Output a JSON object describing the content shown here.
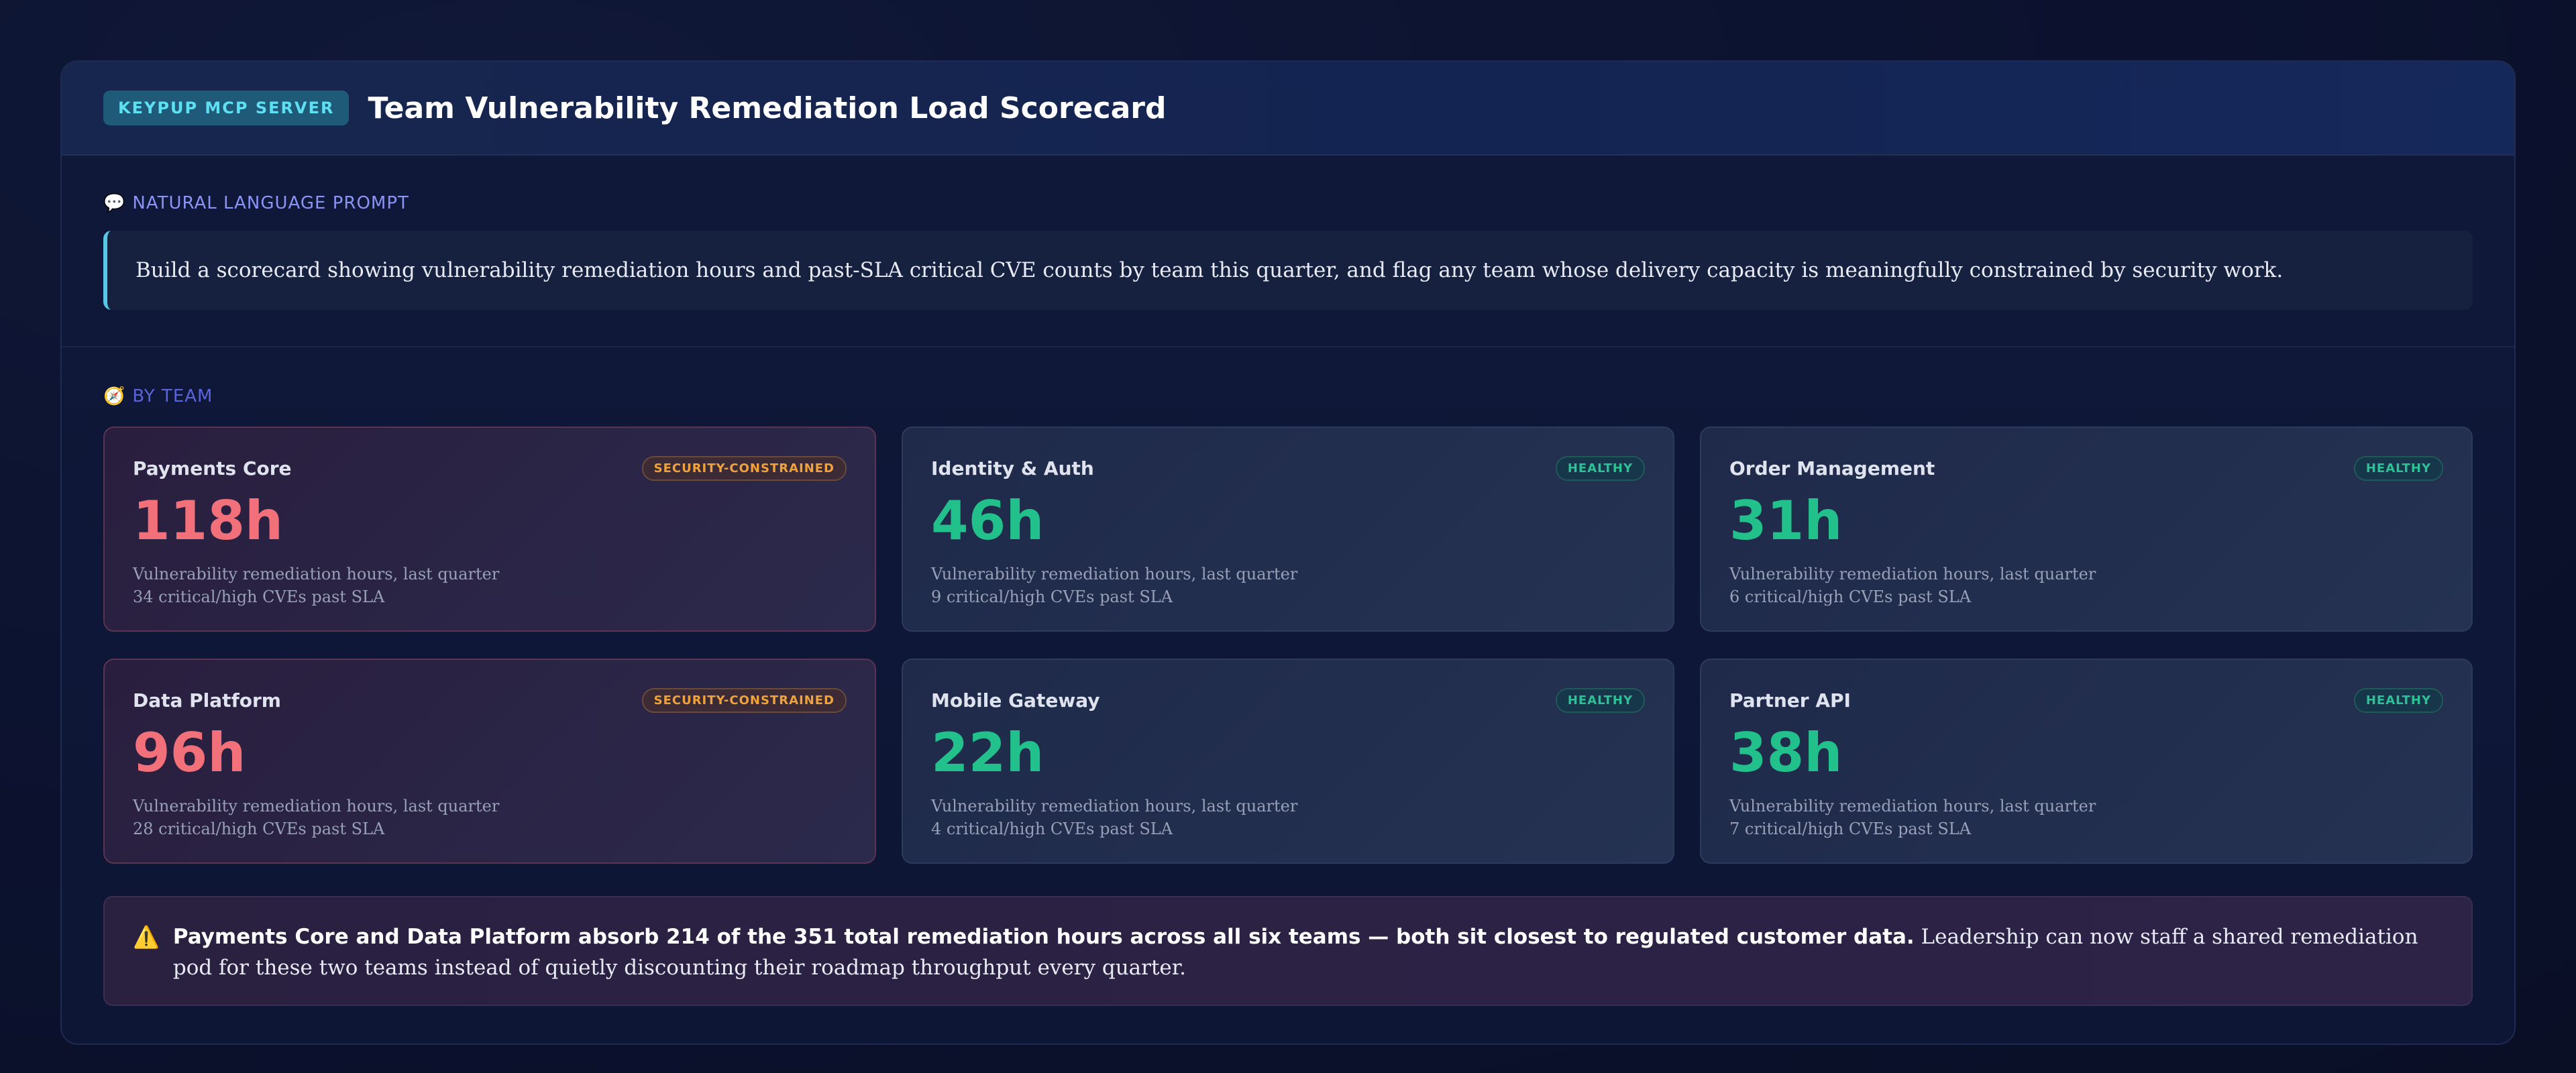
{
  "header": {
    "badge": "KEYPUP MCP SERVER",
    "title": "Team Vulnerability Remediation Load Scorecard"
  },
  "prompt": {
    "label_icon": "speech-bubble-icon",
    "label": "NATURAL LANGUAGE PROMPT",
    "text": "Build a scorecard showing vulnerability remediation hours and past-SLA critical CVE counts by team this quarter, and flag any team whose delivery capacity is meaningfully constrained by security work."
  },
  "teams_section": {
    "label_icon": "compass-icon",
    "label": "BY TEAM"
  },
  "teams": [
    {
      "name": "Payments Core",
      "status": "SECURITY-CONSTRAINED",
      "value": "118h",
      "line1": "Vulnerability remediation hours, last quarter",
      "line2": "34 critical/high CVEs past SLA"
    },
    {
      "name": "Identity & Auth",
      "status": "HEALTHY",
      "value": "46h",
      "line1": "Vulnerability remediation hours, last quarter",
      "line2": "9 critical/high CVEs past SLA"
    },
    {
      "name": "Order Management",
      "status": "HEALTHY",
      "value": "31h",
      "line1": "Vulnerability remediation hours, last quarter",
      "line2": "6 critical/high CVEs past SLA"
    },
    {
      "name": "Data Platform",
      "status": "SECURITY-CONSTRAINED",
      "value": "96h",
      "line1": "Vulnerability remediation hours, last quarter",
      "line2": "28 critical/high CVEs past SLA"
    },
    {
      "name": "Mobile Gateway",
      "status": "HEALTHY",
      "value": "22h",
      "line1": "Vulnerability remediation hours, last quarter",
      "line2": "4 critical/high CVEs past SLA"
    },
    {
      "name": "Partner API",
      "status": "HEALTHY",
      "value": "38h",
      "line1": "Vulnerability remediation hours, last quarter",
      "line2": "7 critical/high CVEs past SLA"
    }
  ],
  "callout": {
    "icon": "warning-icon",
    "bold": "Payments Core and Data Platform absorb 214 of the 351 total remediation hours across all six teams — both sit closest to regulated customer data.",
    "text": " Leadership can now staff a shared remediation pod for these two teams instead of quietly discounting their roadmap throughput every quarter."
  },
  "colors": {
    "alert_value": "#f2707a",
    "healthy_value": "#22c08a",
    "alert_badge": "#f0a33c",
    "healthy_badge": "#2cc296",
    "accent": "#56c7e6"
  }
}
